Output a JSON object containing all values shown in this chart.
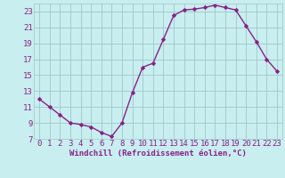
{
  "x": [
    0,
    1,
    2,
    3,
    4,
    5,
    6,
    7,
    8,
    9,
    10,
    11,
    12,
    13,
    14,
    15,
    16,
    17,
    18,
    19,
    20,
    21,
    22,
    23
  ],
  "y": [
    12.0,
    11.0,
    10.0,
    9.0,
    8.8,
    8.5,
    7.8,
    7.3,
    9.0,
    12.8,
    16.0,
    16.5,
    19.5,
    22.5,
    23.2,
    23.3,
    23.5,
    23.8,
    23.5,
    23.2,
    21.2,
    19.2,
    17.0,
    15.5
  ],
  "xlabel": "Windchill (Refroidissement éolien,°C)",
  "ylim": [
    7,
    24
  ],
  "xlim": [
    -0.5,
    23.5
  ],
  "yticks": [
    7,
    9,
    11,
    13,
    15,
    17,
    19,
    21,
    23
  ],
  "xticks": [
    0,
    1,
    2,
    3,
    4,
    5,
    6,
    7,
    8,
    9,
    10,
    11,
    12,
    13,
    14,
    15,
    16,
    17,
    18,
    19,
    20,
    21,
    22,
    23
  ],
  "line_color": "#882288",
  "marker": "D",
  "bg_color": "#c8eef0",
  "grid_color": "#a0c8c8",
  "label_color": "#882288",
  "tick_fontsize": 6.5,
  "xlabel_fontsize": 6.5
}
